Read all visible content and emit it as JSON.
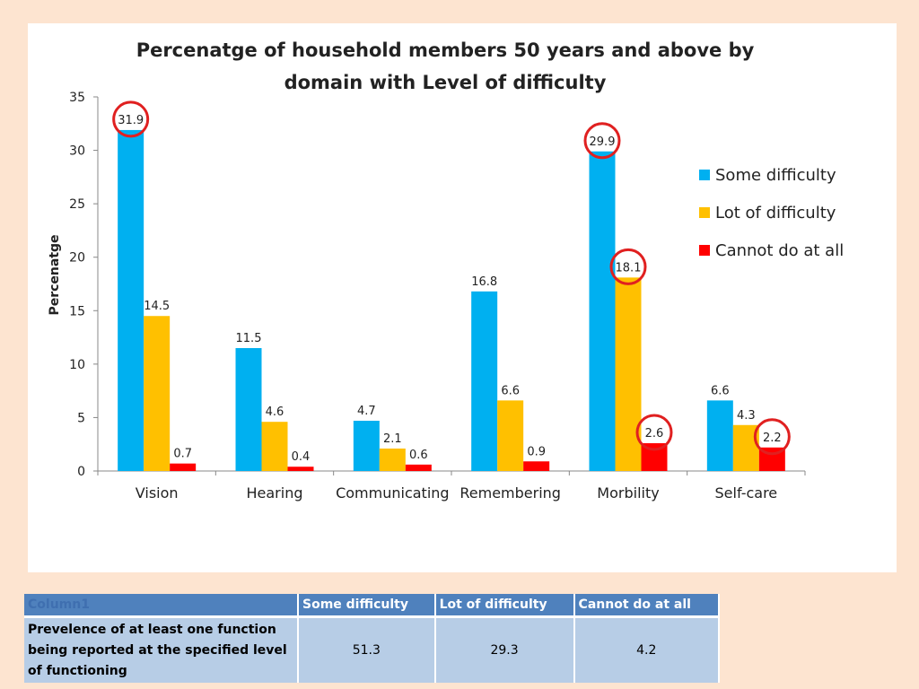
{
  "chart_data": {
    "type": "bar",
    "title_line1": "Percenatge of household members 50 years and above by",
    "title_line2": "domain with Level of difficulty",
    "ylabel": "Percenatge",
    "xlabel": "",
    "ylim": [
      0,
      35
    ],
    "yticks": [
      0,
      5,
      10,
      15,
      20,
      25,
      30,
      35
    ],
    "categories": [
      "Vision",
      "Hearing",
      "Communicating",
      "Remembering",
      "Morbility",
      "Self-care"
    ],
    "series": [
      {
        "name": "Some difficulty",
        "color": "#00b0f0",
        "values": [
          31.9,
          11.5,
          4.7,
          16.8,
          29.9,
          6.6
        ]
      },
      {
        "name": "Lot of difficulty",
        "color": "#ffc000",
        "values": [
          14.5,
          4.6,
          2.1,
          6.6,
          18.1,
          4.3
        ]
      },
      {
        "name": "Cannot do at all",
        "color": "#ff0000",
        "values": [
          0.7,
          0.4,
          0.6,
          0.9,
          2.6,
          2.2
        ]
      }
    ],
    "legend_position": "right",
    "highlight_circle_color": "#e02020",
    "highlighted_points": [
      {
        "series": 0,
        "category": 0
      },
      {
        "series": 0,
        "category": 4
      },
      {
        "series": 1,
        "category": 4
      },
      {
        "series": 2,
        "category": 4
      },
      {
        "series": 2,
        "category": 5
      }
    ]
  },
  "table": {
    "headers": [
      "Column1",
      "Some difficulty",
      "Lot of difficulty",
      "Cannot do at all"
    ],
    "row_label": "Prevelence of at least one function being reported at the specified level of functioning",
    "values": [
      "51.3",
      "29.3",
      "4.2"
    ]
  }
}
